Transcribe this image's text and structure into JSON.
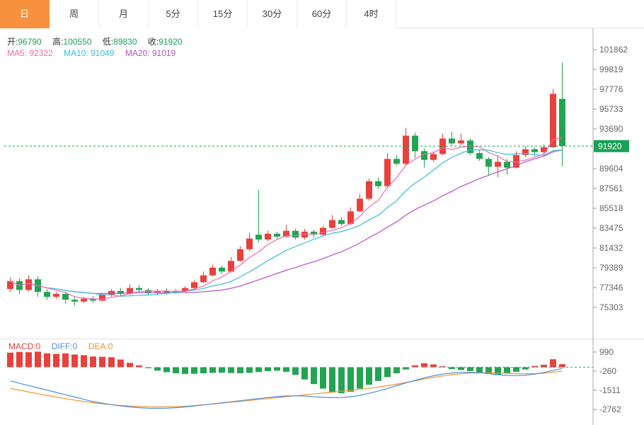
{
  "tabs": {
    "items": [
      {
        "label": "日",
        "selected": true
      },
      {
        "label": "周",
        "selected": false
      },
      {
        "label": "月",
        "selected": false
      },
      {
        "label": "5分",
        "selected": false
      },
      {
        "label": "15分",
        "selected": false
      },
      {
        "label": "30分",
        "selected": false
      },
      {
        "label": "60分",
        "selected": false
      },
      {
        "label": "4时",
        "selected": false
      }
    ]
  },
  "ohlc_info": {
    "open_label": "开:",
    "open": "96790",
    "high_label": "高:",
    "high": "100550",
    "low_label": "低:",
    "low": "89830",
    "close_label": "收:",
    "close": "91920"
  },
  "ma_info": {
    "ma5_label": "MA5:",
    "ma5": "92322",
    "ma10_label": "MA10:",
    "ma10": "91049",
    "ma20_label": "MA20:",
    "ma20": "91019"
  },
  "macd_info": {
    "macd_label": "MACD:",
    "macd": "0",
    "diff_label": "DIFF:",
    "diff": "0",
    "dea_label": "DEA:",
    "dea": "0"
  },
  "price_badge": "91920",
  "colors": {
    "up": "#e8413d",
    "down": "#22a452",
    "ma5": "#f06daa",
    "ma10": "#35bfd8",
    "ma20": "#b152c4",
    "diff": "#4f8fd8",
    "dea": "#ef9434",
    "price_line": "#1ba158",
    "macd_dash": "#26a69a",
    "tab_active_bg": "#f7913d",
    "axis_text": "#666666"
  },
  "chart_data": {
    "type": "candlestick",
    "interval_selected": "日",
    "title": "",
    "y_axis": {
      "ticks": [
        101862,
        99819,
        97776,
        95733,
        93690,
        89604,
        87561,
        85518,
        83475,
        81432,
        79389,
        77346,
        75303
      ],
      "tick_step": 2043,
      "current_price": 91920
    },
    "ohlc_readout": {
      "open": 96790,
      "high": 100550,
      "low": 89830,
      "close": 91920
    },
    "ma_readout": {
      "ma5": 92322,
      "ma10": 91049,
      "ma20": 91019
    },
    "candles": [
      [
        77200,
        78400,
        76900,
        78000
      ],
      [
        78000,
        78300,
        76700,
        77100
      ],
      [
        77100,
        78600,
        76900,
        78200
      ],
      [
        78200,
        78500,
        76400,
        76900
      ],
      [
        76900,
        77200,
        76100,
        76400
      ],
      [
        76400,
        76900,
        76200,
        76700
      ],
      [
        76700,
        76900,
        75700,
        76100
      ],
      [
        76100,
        76400,
        75500,
        75900
      ],
      [
        75900,
        76400,
        75700,
        76200
      ],
      [
        76200,
        76500,
        75800,
        76000
      ],
      [
        76000,
        76800,
        75900,
        76600
      ],
      [
        76600,
        77200,
        76400,
        77000
      ],
      [
        77000,
        77300,
        76500,
        76700
      ],
      [
        76700,
        77700,
        76600,
        77300
      ],
      [
        77300,
        77600,
        76900,
        77100
      ],
      [
        77100,
        77300,
        76600,
        76800
      ],
      [
        76800,
        77200,
        76600,
        77000
      ],
      [
        77000,
        77300,
        76600,
        76800
      ],
      [
        76800,
        77200,
        76700,
        77000
      ],
      [
        77000,
        77500,
        76900,
        77300
      ],
      [
        77300,
        78100,
        77200,
        77900
      ],
      [
        77900,
        79000,
        77800,
        78600
      ],
      [
        78600,
        79700,
        78500,
        79400
      ],
      [
        79400,
        79600,
        78700,
        79000
      ],
      [
        79000,
        80500,
        78900,
        80100
      ],
      [
        80100,
        81600,
        80000,
        81300
      ],
      [
        81300,
        83000,
        81100,
        82400
      ],
      [
        82800,
        87400,
        82000,
        82300
      ],
      [
        82300,
        83200,
        82100,
        82900
      ],
      [
        82900,
        83100,
        82300,
        82600
      ],
      [
        82600,
        83800,
        82500,
        83200
      ],
      [
        83200,
        83400,
        82300,
        82500
      ],
      [
        82500,
        83400,
        82300,
        83100
      ],
      [
        83100,
        83300,
        82500,
        82800
      ],
      [
        82800,
        83700,
        82600,
        83500
      ],
      [
        83500,
        84800,
        83400,
        84300
      ],
      [
        84300,
        84600,
        83700,
        83900
      ],
      [
        83900,
        85600,
        83800,
        85200
      ],
      [
        85200,
        87000,
        85100,
        86500
      ],
      [
        86500,
        88600,
        86300,
        88300
      ],
      [
        88300,
        88700,
        87500,
        87800
      ],
      [
        87800,
        91200,
        87700,
        90600
      ],
      [
        90600,
        91000,
        89900,
        90100
      ],
      [
        90100,
        93800,
        90000,
        93000
      ],
      [
        93000,
        93300,
        90700,
        91400
      ],
      [
        91400,
        91700,
        89700,
        90500
      ],
      [
        90500,
        91400,
        90300,
        91100
      ],
      [
        91100,
        93200,
        91000,
        92700
      ],
      [
        92700,
        93400,
        92000,
        92200
      ],
      [
        92200,
        93200,
        92000,
        92500
      ],
      [
        92500,
        92700,
        91000,
        91200
      ],
      [
        91200,
        91500,
        90400,
        90600
      ],
      [
        90600,
        90800,
        88900,
        89800
      ],
      [
        89800,
        91000,
        88700,
        90300
      ],
      [
        90300,
        90600,
        89000,
        89700
      ],
      [
        89700,
        91400,
        89600,
        91000
      ],
      [
        91000,
        91900,
        90800,
        91600
      ],
      [
        91600,
        91800,
        90900,
        91300
      ],
      [
        91300,
        92100,
        91100,
        91800
      ],
      [
        91800,
        97800,
        91700,
        97300
      ],
      [
        96790,
        100550,
        89830,
        91920
      ]
    ],
    "macd_panel": {
      "y_ticks": [
        990,
        -260,
        -1511,
        -2762
      ],
      "histogram": [
        950,
        1000,
        980,
        1020,
        900,
        870,
        900,
        830,
        780,
        700,
        680,
        650,
        500,
        280,
        120,
        -60,
        -220,
        -330,
        -400,
        -440,
        -430,
        -400,
        -370,
        -360,
        -380,
        -400,
        -370,
        -320,
        -260,
        -220,
        -300,
        -500,
        -800,
        -1100,
        -1400,
        -1650,
        -1700,
        -1600,
        -1400,
        -1150,
        -900,
        -650,
        -400,
        -150,
        120,
        260,
        180,
        60,
        -120,
        -180,
        -250,
        -350,
        -450,
        -500,
        -420,
        -300,
        -150,
        80,
        160,
        520,
        200
      ],
      "diff": [
        -900,
        -1050,
        -1200,
        -1350,
        -1500,
        -1650,
        -1800,
        -1950,
        -2100,
        -2250,
        -2350,
        -2450,
        -2530,
        -2600,
        -2650,
        -2680,
        -2690,
        -2680,
        -2650,
        -2600,
        -2540,
        -2470,
        -2400,
        -2330,
        -2260,
        -2190,
        -2120,
        -2050,
        -1980,
        -1920,
        -1880,
        -1870,
        -1890,
        -1930,
        -1970,
        -1990,
        -1980,
        -1930,
        -1840,
        -1710,
        -1560,
        -1390,
        -1210,
        -1030,
        -860,
        -700,
        -560,
        -450,
        -380,
        -340,
        -330,
        -360,
        -420,
        -490,
        -540,
        -550,
        -520,
        -450,
        -350,
        -210,
        -80
      ],
      "dea": [
        -1380,
        -1500,
        -1620,
        -1730,
        -1840,
        -1950,
        -2050,
        -2150,
        -2240,
        -2320,
        -2390,
        -2450,
        -2500,
        -2540,
        -2570,
        -2590,
        -2600,
        -2595,
        -2580,
        -2550,
        -2510,
        -2460,
        -2410,
        -2350,
        -2290,
        -2230,
        -2170,
        -2110,
        -2050,
        -1990,
        -1930,
        -1870,
        -1810,
        -1750,
        -1690,
        -1630,
        -1570,
        -1510,
        -1450,
        -1380,
        -1300,
        -1210,
        -1110,
        -1000,
        -890,
        -780,
        -670,
        -570,
        -490,
        -430,
        -390,
        -370,
        -370,
        -380,
        -400,
        -420,
        -430,
        -420,
        -390,
        -330,
        -250
      ]
    }
  }
}
